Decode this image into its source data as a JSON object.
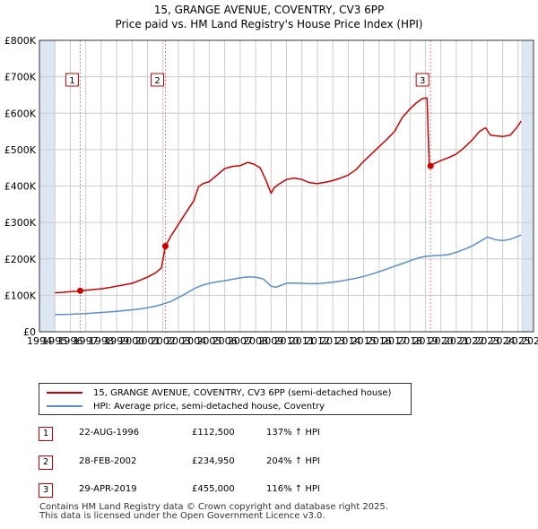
{
  "title_line1": "15, GRANGE AVENUE, COVENTRY, CV3 6PP",
  "title_line2": "Price paid vs. HM Land Registry's House Price Index (HPI)",
  "colors": {
    "property": "#cc0000",
    "hpi": "#5b8fc9",
    "shade": "#dde6f3",
    "grid": "#cccccc",
    "marker_line": "#e88080"
  },
  "chart_data": {
    "type": "line",
    "xlim": [
      1994,
      2026
    ],
    "ylim": [
      0,
      800000
    ],
    "x_ticks": [
      "1994",
      "1995",
      "1996",
      "1997",
      "1998",
      "1999",
      "2000",
      "2001",
      "2002",
      "2003",
      "2004",
      "2005",
      "2006",
      "2007",
      "2008",
      "2009",
      "2010",
      "2011",
      "2012",
      "2013",
      "2014",
      "2015",
      "2016",
      "2017",
      "2018",
      "2019",
      "2020",
      "2021",
      "2022",
      "2023",
      "2024",
      "2025",
      "2026"
    ],
    "y_ticks": [
      {
        "value": 0,
        "label": "£0"
      },
      {
        "value": 100000,
        "label": "£100K"
      },
      {
        "value": 200000,
        "label": "£200K"
      },
      {
        "value": 300000,
        "label": "£300K"
      },
      {
        "value": 400000,
        "label": "£400K"
      },
      {
        "value": 500000,
        "label": "£500K"
      },
      {
        "value": 600000,
        "label": "£600K"
      },
      {
        "value": 700000,
        "label": "£700K"
      },
      {
        "value": 800000,
        "label": "£800K"
      }
    ],
    "shaded_ranges": [
      [
        1994,
        1995
      ],
      [
        2025.2,
        2026
      ]
    ],
    "series": [
      {
        "name": "15, GRANGE AVENUE, COVENTRY, CV3 6PP (semi-detached house)",
        "key": "property",
        "x": [
          1995.0,
          1995.5,
          1996.0,
          1996.4,
          1996.64,
          1997.0,
          1997.5,
          1998.0,
          1998.5,
          1999.0,
          1999.5,
          2000.0,
          2000.5,
          2001.0,
          2001.5,
          2001.9,
          2002.16,
          2002.5,
          2003.0,
          2003.5,
          2004.0,
          2004.3,
          2004.6,
          2005.0,
          2005.5,
          2006.0,
          2006.5,
          2007.0,
          2007.5,
          2007.9,
          2008.3,
          2008.7,
          2009.0,
          2009.2,
          2009.5,
          2010.0,
          2010.5,
          2011.0,
          2011.5,
          2012.0,
          2012.5,
          2013.0,
          2013.5,
          2014.0,
          2014.5,
          2015.0,
          2015.5,
          2016.0,
          2016.5,
          2017.0,
          2017.5,
          2018.0,
          2018.4,
          2018.8,
          2019.1,
          2019.25,
          2019.33,
          2019.5,
          2020.0,
          2020.5,
          2021.0,
          2021.5,
          2022.0,
          2022.5,
          2022.9,
          2023.2,
          2023.5,
          2024.0,
          2024.5,
          2024.9,
          2025.2
        ],
        "y": [
          107000,
          108000,
          110000,
          111000,
          112500,
          114000,
          116000,
          118000,
          121000,
          125000,
          129000,
          133000,
          141000,
          150000,
          161000,
          175000,
          234950,
          262000,
          295000,
          328000,
          360000,
          398000,
          407000,
          412000,
          430000,
          448000,
          454000,
          456000,
          465000,
          460000,
          450000,
          413000,
          380000,
          395000,
          405000,
          418000,
          422000,
          418000,
          409000,
          407000,
          410000,
          415000,
          422000,
          430000,
          445000,
          468000,
          488000,
          508000,
          528000,
          550000,
          588000,
          612000,
          628000,
          640000,
          642000,
          455000,
          455000,
          460000,
          470000,
          478000,
          488000,
          505000,
          525000,
          550000,
          560000,
          540000,
          538000,
          536000,
          540000,
          560000,
          578000
        ]
      },
      {
        "name": "HPI: Average price, semi-detached house, Coventry",
        "key": "hpi",
        "x": [
          1995.0,
          1995.5,
          1996.0,
          1996.5,
          1997.0,
          1997.5,
          1998.0,
          1998.5,
          1999.0,
          1999.5,
          2000.0,
          2000.5,
          2001.0,
          2001.5,
          2002.0,
          2002.5,
          2003.0,
          2003.5,
          2004.0,
          2004.5,
          2005.0,
          2005.5,
          2006.0,
          2006.5,
          2007.0,
          2007.5,
          2008.0,
          2008.5,
          2009.0,
          2009.3,
          2009.7,
          2010.0,
          2010.5,
          2011.0,
          2011.5,
          2012.0,
          2012.5,
          2013.0,
          2013.5,
          2014.0,
          2014.5,
          2015.0,
          2015.5,
          2016.0,
          2016.5,
          2017.0,
          2017.5,
          2018.0,
          2018.5,
          2019.0,
          2019.5,
          2020.0,
          2020.5,
          2021.0,
          2021.5,
          2022.0,
          2022.5,
          2023.0,
          2023.5,
          2024.0,
          2024.5,
          2025.0,
          2025.2
        ],
        "y": [
          47000,
          47500,
          48000,
          49000,
          50000,
          51500,
          53000,
          54500,
          56000,
          58000,
          60000,
          62500,
          66000,
          70000,
          76000,
          83000,
          94000,
          105000,
          118000,
          127000,
          133000,
          137000,
          140000,
          144000,
          148000,
          151000,
          150000,
          145000,
          125000,
          122000,
          128000,
          133000,
          134000,
          133000,
          132000,
          132000,
          134000,
          136000,
          139000,
          143000,
          147000,
          152000,
          158000,
          165000,
          172000,
          180000,
          187000,
          195000,
          202000,
          207000,
          209000,
          210000,
          212000,
          218000,
          226000,
          235000,
          247000,
          260000,
          253000,
          250000,
          254000,
          262000,
          266000
        ]
      }
    ],
    "sales": [
      {
        "num": "1",
        "x": 1996.64,
        "y": 112500,
        "date": "22-AUG-1996",
        "price": "£112,500",
        "hpi": "137% ↑ HPI"
      },
      {
        "num": "2",
        "x": 2002.16,
        "y": 234950,
        "date": "28-FEB-2002",
        "price": "£234,950",
        "hpi": "204% ↑ HPI"
      },
      {
        "num": "3",
        "x": 2019.33,
        "y": 455000,
        "date": "29-APR-2019",
        "price": "£455,000",
        "hpi": "116% ↑ HPI"
      }
    ]
  },
  "legend": {
    "property_label": "15, GRANGE AVENUE, COVENTRY, CV3 6PP (semi-detached house)",
    "hpi_label": "HPI: Average price, semi-detached house, Coventry"
  },
  "footer": {
    "line1": "Contains HM Land Registry data © Crown copyright and database right 2025.",
    "line2": "This data is licensed under the Open Government Licence v3.0."
  }
}
